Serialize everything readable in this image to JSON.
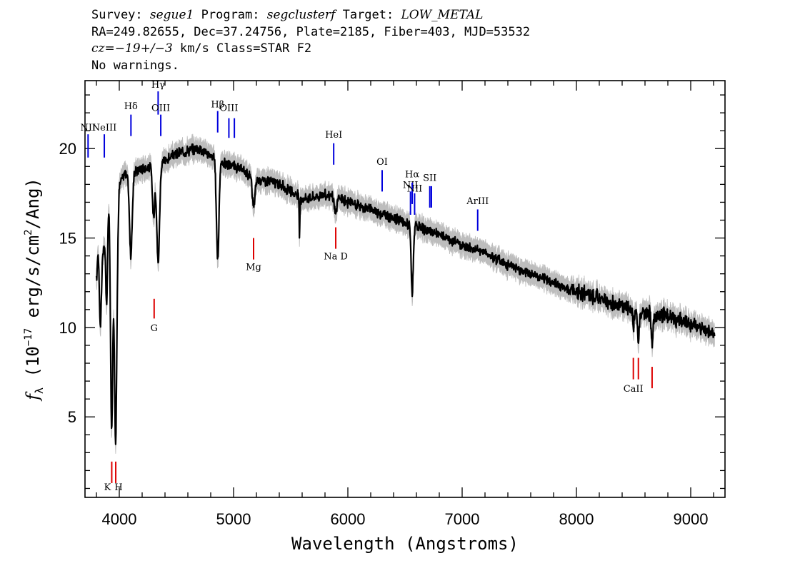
{
  "header": {
    "line1": {
      "survey_label": "Survey: ",
      "survey": "segue1",
      "program_label": " Program: ",
      "program": "segclusterf",
      "target_label": " Target: ",
      "target": "LOW_METAL"
    },
    "line2": "RA=249.82655, Dec=37.24756, Plate=2185, Fiber=403, MJD=53532",
    "line3": {
      "cz_label": "cz",
      "cz_value": "=−19+/−3",
      "cz_rest": " km/s Class=STAR F2"
    },
    "line4": "No warnings."
  },
  "colors": {
    "flux": "#000000",
    "error_band": "#bdbdbd",
    "emission_line": "#0000dd",
    "absorption_line": "#dd0000"
  },
  "chart_data": {
    "type": "line",
    "xlabel": "Wavelength (Angstroms)",
    "ylabel": "f_λ (10^-17 erg/s/cm²/Ang)",
    "ylabel_parts": {
      "f": "f",
      "sub": "λ",
      "pre": " (10",
      "exp": "−17",
      "mid": " erg/s/cm",
      "exp2": "2",
      "post": "/Ang)"
    },
    "xlim": [
      3700,
      9300
    ],
    "ylim": [
      0.5,
      23.8
    ],
    "xticks": [
      4000,
      5000,
      6000,
      7000,
      8000,
      9000
    ],
    "yticks": [
      5,
      10,
      15,
      20
    ],
    "continuum": {
      "x": [
        3800,
        3830,
        3860,
        3880,
        3900,
        3920,
        3950,
        3990,
        4000,
        4050,
        4100,
        4200,
        4300,
        4400,
        4500,
        4600,
        4700,
        4800,
        4900,
        5000,
        5100,
        5200,
        5300,
        5400,
        5500,
        5600,
        5700,
        5800,
        5900,
        6000,
        6200,
        6400,
        6600,
        6800,
        7000,
        7200,
        7400,
        7600,
        7800,
        8000,
        8200,
        8400,
        8600,
        8800,
        9000,
        9100,
        9200
      ],
      "y": [
        15.5,
        13.5,
        14.2,
        16.3,
        17.5,
        17.5,
        17.2,
        17.2,
        18.0,
        18.6,
        18.6,
        18.9,
        19.0,
        19.3,
        19.7,
        19.9,
        20.0,
        19.6,
        19.2,
        19.0,
        18.7,
        18.3,
        18.2,
        18.0,
        17.6,
        17.2,
        17.3,
        17.4,
        17.3,
        17.0,
        16.6,
        16.1,
        15.6,
        15.2,
        14.6,
        14.2,
        13.5,
        13.0,
        12.5,
        12.0,
        11.6,
        11.2,
        10.8,
        10.6,
        10.2,
        9.9,
        9.7
      ]
    },
    "absorption_features": [
      {
        "x": 3798,
        "depth": 3.0,
        "width": 8
      },
      {
        "x": 3835,
        "depth": 3.5,
        "width": 8
      },
      {
        "x": 3889,
        "depth": 5.5,
        "width": 9
      },
      {
        "x": 3933,
        "depth": 13.0,
        "width": 10
      },
      {
        "x": 3968,
        "depth": 13.5,
        "width": 11
      },
      {
        "x": 4101,
        "depth": 4.5,
        "width": 12
      },
      {
        "x": 4300,
        "depth": 2.8,
        "width": 10
      },
      {
        "x": 4340,
        "depth": 5.5,
        "width": 12
      },
      {
        "x": 4861,
        "depth": 5.5,
        "width": 11
      },
      {
        "x": 5175,
        "depth": 1.6,
        "width": 12
      },
      {
        "x": 5577,
        "depth": 2.5,
        "width": 3
      },
      {
        "x": 5892,
        "depth": 1.0,
        "width": 10
      },
      {
        "x": 6563,
        "depth": 3.8,
        "width": 9
      },
      {
        "x": 8498,
        "depth": 1.2,
        "width": 6
      },
      {
        "x": 8542,
        "depth": 2.0,
        "width": 7
      },
      {
        "x": 8662,
        "depth": 1.8,
        "width": 7
      }
    ],
    "noise_amplitude": 0.35,
    "error_band_halfwidth": 0.45,
    "emission_lines": [
      {
        "label": "NII",
        "x": 3727,
        "y_bottom": 19.5,
        "y_top": 20.8,
        "label_y": 21.0
      },
      {
        "label": "NeIII",
        "x": 3869,
        "y_bottom": 19.5,
        "y_top": 20.8,
        "label_y": 21.0
      },
      {
        "label": "Hδ",
        "x": 4102,
        "y_bottom": 20.7,
        "y_top": 21.9,
        "label_y": 22.2
      },
      {
        "label": "Hγ",
        "x": 4340,
        "y_bottom": 21.9,
        "y_top": 23.2,
        "label_y": 23.4
      },
      {
        "label": "OIII",
        "x": 4363,
        "y_bottom": 20.7,
        "y_top": 21.9,
        "label_y": 22.1
      },
      {
        "label": "Hβ",
        "x": 4861,
        "y_bottom": 20.9,
        "y_top": 22.1,
        "label_y": 22.3
      },
      {
        "label": "OIII",
        "x": 4959,
        "y_bottom": 20.6,
        "y_top": 21.7,
        "label_y": 22.1
      },
      {
        "label": "",
        "x": 5007,
        "y_bottom": 20.6,
        "y_top": 21.7,
        "label_y": 21.9
      },
      {
        "label": "HeI",
        "x": 5876,
        "y_bottom": 19.1,
        "y_top": 20.3,
        "label_y": 20.6
      },
      {
        "label": "OI",
        "x": 6300,
        "y_bottom": 17.6,
        "y_top": 18.8,
        "label_y": 19.1
      },
      {
        "label": "NII",
        "x": 6548,
        "y_bottom": 16.3,
        "y_top": 17.6,
        "label_y": 17.8
      },
      {
        "label": "Hα",
        "x": 6563,
        "y_bottom": 16.9,
        "y_top": 18.1,
        "label_y": 18.4
      },
      {
        "label": "NII",
        "x": 6584,
        "y_bottom": 16.3,
        "y_top": 17.5,
        "label_y": 17.6
      },
      {
        "label": "SII",
        "x": 6717,
        "y_bottom": 16.7,
        "y_top": 17.9,
        "label_y": 18.2
      },
      {
        "label": "",
        "x": 6731,
        "y_bottom": 16.7,
        "y_top": 17.9,
        "label_y": 18.2
      },
      {
        "label": "ArIII",
        "x": 7136,
        "y_bottom": 15.4,
        "y_top": 16.6,
        "label_y": 16.9
      }
    ],
    "absorption_lines": [
      {
        "label": "K",
        "x": 3934,
        "y_top": 2.5,
        "y_bottom": 1.3,
        "label_y": 0.9,
        "label_dx": -6
      },
      {
        "label": "H",
        "x": 3969,
        "y_top": 2.5,
        "y_bottom": 1.3,
        "label_y": 0.9,
        "label_dx": 4
      },
      {
        "label": "G",
        "x": 4305,
        "y_top": 11.6,
        "y_bottom": 10.5,
        "label_y": 9.8,
        "label_dx": 0
      },
      {
        "label": "Mg",
        "x": 5175,
        "y_top": 15.0,
        "y_bottom": 13.8,
        "label_y": 13.2,
        "label_dx": 0
      },
      {
        "label": "Na D",
        "x": 5894,
        "y_top": 15.6,
        "y_bottom": 14.4,
        "label_y": 13.8,
        "label_dx": 0
      },
      {
        "label": "CaII",
        "x": 8498,
        "y_top": 8.3,
        "y_bottom": 7.1,
        "label_y": 6.4,
        "label_dx": 0
      },
      {
        "label": "",
        "x": 8542,
        "y_top": 8.3,
        "y_bottom": 7.1,
        "label_y": 6.4,
        "label_dx": 0
      },
      {
        "label": "",
        "x": 8662,
        "y_top": 7.8,
        "y_bottom": 6.6,
        "label_y": 6.4,
        "label_dx": 0
      }
    ]
  }
}
